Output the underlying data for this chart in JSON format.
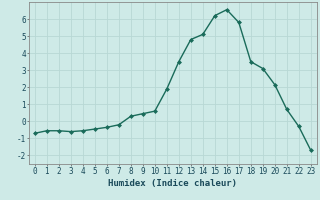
{
  "x": [
    0,
    1,
    2,
    3,
    4,
    5,
    6,
    7,
    8,
    9,
    10,
    11,
    12,
    13,
    14,
    15,
    16,
    17,
    18,
    19,
    20,
    21,
    22,
    23
  ],
  "y": [
    -0.7,
    -0.55,
    -0.55,
    -0.6,
    -0.55,
    -0.45,
    -0.35,
    -0.2,
    0.3,
    0.45,
    0.6,
    1.9,
    3.5,
    4.8,
    5.1,
    6.2,
    6.55,
    5.8,
    3.5,
    3.1,
    2.15,
    0.7,
    -0.3,
    -1.7
  ],
  "line_color": "#1a6b5a",
  "marker": "D",
  "marker_size": 2.0,
  "bg_color": "#ceeae7",
  "grid_color": "#b8d8d5",
  "xlabel": "Humidex (Indice chaleur)",
  "xlim": [
    -0.5,
    23.5
  ],
  "ylim": [
    -2.5,
    7.0
  ],
  "yticks": [
    -2,
    -1,
    0,
    1,
    2,
    3,
    4,
    5,
    6
  ],
  "xticks": [
    0,
    1,
    2,
    3,
    4,
    5,
    6,
    7,
    8,
    9,
    10,
    11,
    12,
    13,
    14,
    15,
    16,
    17,
    18,
    19,
    20,
    21,
    22,
    23
  ],
  "tick_fontsize": 5.5,
  "xlabel_fontsize": 6.5,
  "line_width": 1.0
}
